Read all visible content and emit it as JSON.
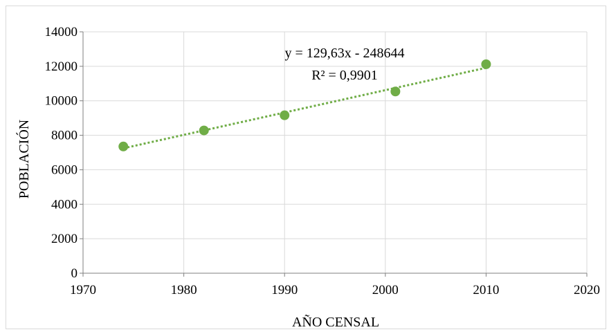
{
  "chart_data": {
    "type": "scatter",
    "xlabel": "AÑO CENSAL",
    "ylabel": "POBLACIÓN",
    "xlim": [
      1970,
      2020
    ],
    "ylim": [
      0,
      14000
    ],
    "x_ticks": [
      "1970",
      "1980",
      "1990",
      "2000",
      "2010",
      "2020"
    ],
    "y_ticks": [
      "0",
      "2000",
      "4000",
      "6000",
      "8000",
      "10000",
      "12000",
      "14000"
    ],
    "grid": true,
    "marker_color": "#70ad47",
    "series": [
      {
        "x": [
          1974,
          1982,
          1990,
          2001,
          2010
        ],
        "y": [
          7350,
          8280,
          9160,
          10540,
          12120
        ]
      }
    ],
    "trendline": {
      "type": "linear",
      "slope": 129.63,
      "intercept": -248644,
      "style": "dotted",
      "color": "#70ad47",
      "equation_text": "y = 129,63x - 248644",
      "r2_text": "R² = 0,9901"
    }
  }
}
